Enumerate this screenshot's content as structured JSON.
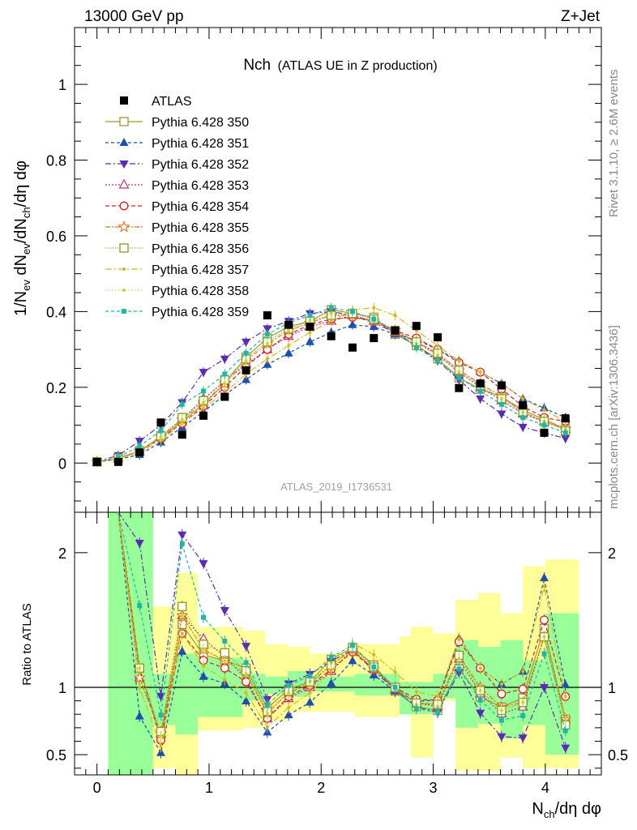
{
  "header": {
    "left": "13000 GeV pp",
    "right": "Z+Jet"
  },
  "side_labels": {
    "rivet": "Rivet 3.1.10, ≥ 2.6M events",
    "mcplots": "mcplots.cern.ch [arXiv:1306.3436]"
  },
  "chart_data": {
    "type": "line",
    "title_main": "Nch",
    "title_sub": "(ATLAS UE in Z production)",
    "watermark": "ATLAS_2019_I1736531",
    "ylabel_main": "1/N_ev dN_ev/dN_ch/dη dφ",
    "ylabel_ratio": "Ratio to ATLAS",
    "xlabel": "N_ch/dη dφ",
    "xlim": [
      -0.2,
      4.5
    ],
    "ylim_main": [
      -0.13,
      1.15
    ],
    "ylim_ratio": [
      0.35,
      2.3
    ],
    "xticks": [
      "0",
      "1",
      "2",
      "3",
      "4"
    ],
    "yticks_main": [
      "0",
      "0.2",
      "0.4",
      "0.6",
      "0.8",
      "1"
    ],
    "yticks_ratio": [
      "0.5",
      "1",
      "2"
    ],
    "x": [
      0.0,
      0.19,
      0.38,
      0.57,
      0.76,
      0.95,
      1.14,
      1.33,
      1.52,
      1.71,
      1.9,
      2.09,
      2.28,
      2.47,
      2.66,
      2.85,
      3.04,
      3.23,
      3.42,
      3.61,
      3.8,
      3.99,
      4.18
    ],
    "data": {
      "name": "ATLAS",
      "values": [
        0.003,
        0.003,
        0.028,
        0.107,
        0.075,
        0.125,
        0.175,
        0.245,
        0.39,
        0.365,
        0.36,
        0.335,
        0.305,
        0.33,
        0.35,
        0.362,
        0.332,
        0.198,
        0.21,
        0.205,
        0.152,
        0.08,
        0.118
      ]
    },
    "band_yellow": [
      [
        0.1,
        0.5,
        0.55,
        1.6
      ],
      [
        0.5,
        0.7,
        0.4,
        1.6
      ],
      [
        0.7,
        0.9,
        0.35,
        1.85
      ],
      [
        0.9,
        1.3,
        0.68,
        1.45
      ],
      [
        1.3,
        1.5,
        0.7,
        1.42
      ],
      [
        1.5,
        1.7,
        0.75,
        1.32
      ],
      [
        1.7,
        1.9,
        0.82,
        1.3
      ],
      [
        1.9,
        2.3,
        0.82,
        1.25
      ],
      [
        2.3,
        2.7,
        0.78,
        1.32
      ],
      [
        2.7,
        2.8,
        0.8,
        1.38
      ],
      [
        2.8,
        3.0,
        0.48,
        1.45
      ],
      [
        3.0,
        3.2,
        0.9,
        1.4
      ],
      [
        3.2,
        3.4,
        0.38,
        1.65
      ],
      [
        3.4,
        3.6,
        0.38,
        1.7
      ],
      [
        3.6,
        3.8,
        0.48,
        1.55
      ],
      [
        3.8,
        4.0,
        0.4,
        1.9
      ],
      [
        4.0,
        4.3,
        0.4,
        1.95
      ]
    ],
    "band_green": [
      [
        0.1,
        0.5,
        0.35,
        2.3
      ],
      [
        0.5,
        0.7,
        0.72,
        1.1
      ],
      [
        0.7,
        0.9,
        0.65,
        1.25
      ],
      [
        0.9,
        1.3,
        0.78,
        1.22
      ],
      [
        1.3,
        1.5,
        0.9,
        1.1
      ],
      [
        1.5,
        1.7,
        0.95,
        1.08
      ],
      [
        1.7,
        1.9,
        0.93,
        1.12
      ],
      [
        1.9,
        2.3,
        0.97,
        1.08
      ],
      [
        2.3,
        2.7,
        0.94,
        1.1
      ],
      [
        2.7,
        3.0,
        0.8,
        1.04
      ],
      [
        3.0,
        3.2,
        0.92,
        1.1
      ],
      [
        3.2,
        3.4,
        0.7,
        1.35
      ],
      [
        3.4,
        3.6,
        0.73,
        1.3
      ],
      [
        3.6,
        3.8,
        0.62,
        1.35
      ],
      [
        3.8,
        4.0,
        0.72,
        1.2
      ],
      [
        4.0,
        4.3,
        0.5,
        1.55
      ]
    ],
    "series": [
      {
        "name": "Pythia 6.428 350",
        "color": "#9a9a30",
        "dash": "",
        "marker": "square-open",
        "values": [
          0.003,
          0.013,
          0.032,
          0.068,
          0.11,
          0.155,
          0.21,
          0.28,
          0.33,
          0.36,
          0.375,
          0.405,
          0.395,
          0.385,
          0.34,
          0.31,
          0.275,
          0.225,
          0.195,
          0.175,
          0.14,
          0.115,
          0.09
        ]
      },
      {
        "name": "Pythia 6.428 351",
        "color": "#1c4fb0",
        "dash": "4 3",
        "marker": "triangle-up",
        "values": [
          0.003,
          0.01,
          0.022,
          0.055,
          0.095,
          0.135,
          0.18,
          0.22,
          0.26,
          0.29,
          0.32,
          0.345,
          0.365,
          0.36,
          0.34,
          0.325,
          0.3,
          0.27,
          0.24,
          0.21,
          0.17,
          0.145,
          0.12
        ]
      },
      {
        "name": "Pythia 6.428 352",
        "color": "#5a2ab8",
        "dash": "7 3 2 3",
        "marker": "triangle-down",
        "values": [
          0.004,
          0.02,
          0.058,
          0.1,
          0.16,
          0.24,
          0.275,
          0.32,
          0.355,
          0.375,
          0.395,
          0.4,
          0.39,
          0.37,
          0.345,
          0.31,
          0.27,
          0.22,
          0.17,
          0.13,
          0.095,
          0.08,
          0.065
        ]
      },
      {
        "name": "Pythia 6.428 353",
        "color": "#c0307a",
        "dash": "2 2",
        "marker": "triangle-open",
        "values": [
          0.003,
          0.012,
          0.03,
          0.07,
          0.115,
          0.17,
          0.215,
          0.26,
          0.3,
          0.335,
          0.36,
          0.375,
          0.39,
          0.375,
          0.345,
          0.32,
          0.285,
          0.24,
          0.2,
          0.165,
          0.13,
          0.11,
          0.09
        ]
      },
      {
        "name": "Pythia 6.428 354",
        "color": "#d82020",
        "dash": "5 3",
        "marker": "circle-open",
        "values": [
          0.003,
          0.012,
          0.032,
          0.065,
          0.105,
          0.15,
          0.2,
          0.255,
          0.3,
          0.34,
          0.365,
          0.38,
          0.385,
          0.375,
          0.35,
          0.33,
          0.3,
          0.265,
          0.24,
          0.195,
          0.15,
          0.12,
          0.11
        ]
      },
      {
        "name": "Pythia 6.428 355",
        "color": "#e57020",
        "dash": "6 2 2 2",
        "marker": "star-open",
        "values": [
          0.003,
          0.013,
          0.03,
          0.07,
          0.115,
          0.16,
          0.21,
          0.27,
          0.315,
          0.35,
          0.37,
          0.39,
          0.39,
          0.375,
          0.35,
          0.32,
          0.29,
          0.245,
          0.21,
          0.175,
          0.135,
          0.11,
          0.09
        ]
      },
      {
        "name": "Pythia 6.428 356",
        "color": "#8a9a1a",
        "dash": "1 2",
        "marker": "square-open",
        "values": [
          0.003,
          0.013,
          0.032,
          0.072,
          0.12,
          0.165,
          0.22,
          0.275,
          0.32,
          0.355,
          0.375,
          0.39,
          0.395,
          0.38,
          0.35,
          0.32,
          0.29,
          0.245,
          0.205,
          0.17,
          0.135,
          0.11,
          0.085
        ]
      },
      {
        "name": "Pythia 6.428 357",
        "color": "#d8b818",
        "dash": "8 3 2 3",
        "marker": "dot",
        "values": [
          0.003,
          0.012,
          0.028,
          0.06,
          0.105,
          0.145,
          0.185,
          0.235,
          0.275,
          0.31,
          0.345,
          0.375,
          0.405,
          0.41,
          0.39,
          0.35,
          0.31,
          0.27,
          0.24,
          0.21,
          0.17,
          0.14,
          0.11
        ]
      },
      {
        "name": "Pythia 6.428 358",
        "color": "#c8d820",
        "dash": "1 3",
        "marker": "dot",
        "values": [
          0.003,
          0.013,
          0.032,
          0.068,
          0.115,
          0.16,
          0.21,
          0.27,
          0.315,
          0.35,
          0.375,
          0.395,
          0.4,
          0.38,
          0.35,
          0.315,
          0.285,
          0.24,
          0.205,
          0.17,
          0.135,
          0.11,
          0.09
        ]
      },
      {
        "name": "Pythia 6.428 359",
        "color": "#20b8a0",
        "dash": "4 3",
        "marker": "square-fill",
        "values": [
          0.003,
          0.015,
          0.045,
          0.085,
          0.155,
          0.19,
          0.235,
          0.29,
          0.34,
          0.37,
          0.39,
          0.41,
          0.4,
          0.38,
          0.35,
          0.305,
          0.27,
          0.225,
          0.19,
          0.155,
          0.12,
          0.1,
          0.08
        ]
      }
    ]
  }
}
